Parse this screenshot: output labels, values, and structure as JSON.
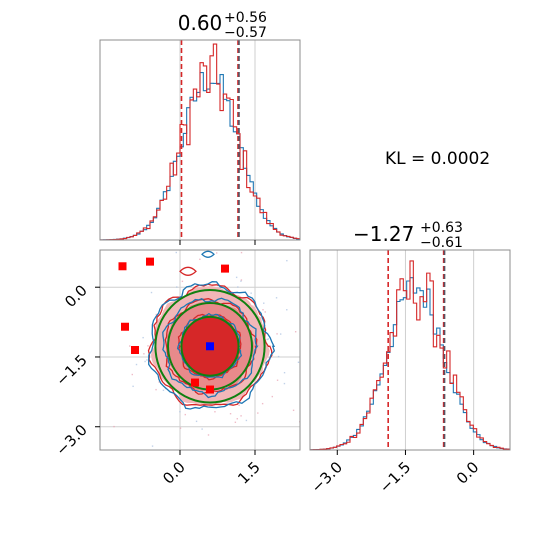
{
  "colors": {
    "blue": "#1f77b4",
    "red": "#d62728",
    "green": "#108010",
    "grid": "#cfcfcf",
    "frame": "#8c8c8c",
    "marker_red": "#ff0000",
    "marker_blue": "#0000ff"
  },
  "kl_label": "KL = 0.0002",
  "chart_data": [
    {
      "type": "histogram",
      "panel": "top-left",
      "title_value": "0.60",
      "title_plus": "+0.56",
      "title_minus": "−0.57",
      "x_range": [
        -1.6,
        2.4
      ],
      "center": 0.6,
      "sigma": 0.56,
      "quantile_lines": [
        0.03,
        1.16,
        1.18
      ],
      "grid_x": [
        0.0,
        1.5
      ]
    },
    {
      "type": "scatter_contour",
      "panel": "bottom-left",
      "x_range": [
        -1.6,
        2.4
      ],
      "y_range": [
        -3.5,
        0.8
      ],
      "x_ticks": [
        {
          "value": 0.0,
          "label": "0.0"
        },
        {
          "value": 1.5,
          "label": "1.5"
        }
      ],
      "y_ticks": [
        {
          "value": 0.0,
          "label": "0.0"
        },
        {
          "value": -1.5,
          "label": "−1.5"
        },
        {
          "value": -3.0,
          "label": "−3.0"
        }
      ],
      "center": {
        "x": 0.6,
        "y": -1.27
      },
      "red_markers": [
        {
          "x": -1.15,
          "y": 0.45
        },
        {
          "x": -0.6,
          "y": 0.55
        },
        {
          "x": 0.9,
          "y": 0.4
        },
        {
          "x": -1.1,
          "y": -0.85
        },
        {
          "x": -0.9,
          "y": -1.35
        },
        {
          "x": 0.3,
          "y": -2.05
        },
        {
          "x": 0.6,
          "y": -2.2
        }
      ],
      "blue_marker": {
        "x": 0.6,
        "y": -1.27
      }
    },
    {
      "type": "histogram",
      "panel": "bottom-right",
      "title_value": "−1.27",
      "title_plus": "+0.63",
      "title_minus": "−0.61",
      "x_range": [
        -3.6,
        0.8
      ],
      "center": -1.27,
      "sigma": 0.62,
      "quantile_lines": [
        -1.88,
        -0.66,
        -0.64
      ],
      "grid_x": [
        -3.0,
        -1.5,
        0.0
      ],
      "x_ticks": [
        {
          "value": -3.0,
          "label": "−3.0"
        },
        {
          "value": -1.5,
          "label": "−1.5"
        },
        {
          "value": 0.0,
          "label": "0.0"
        }
      ]
    }
  ]
}
